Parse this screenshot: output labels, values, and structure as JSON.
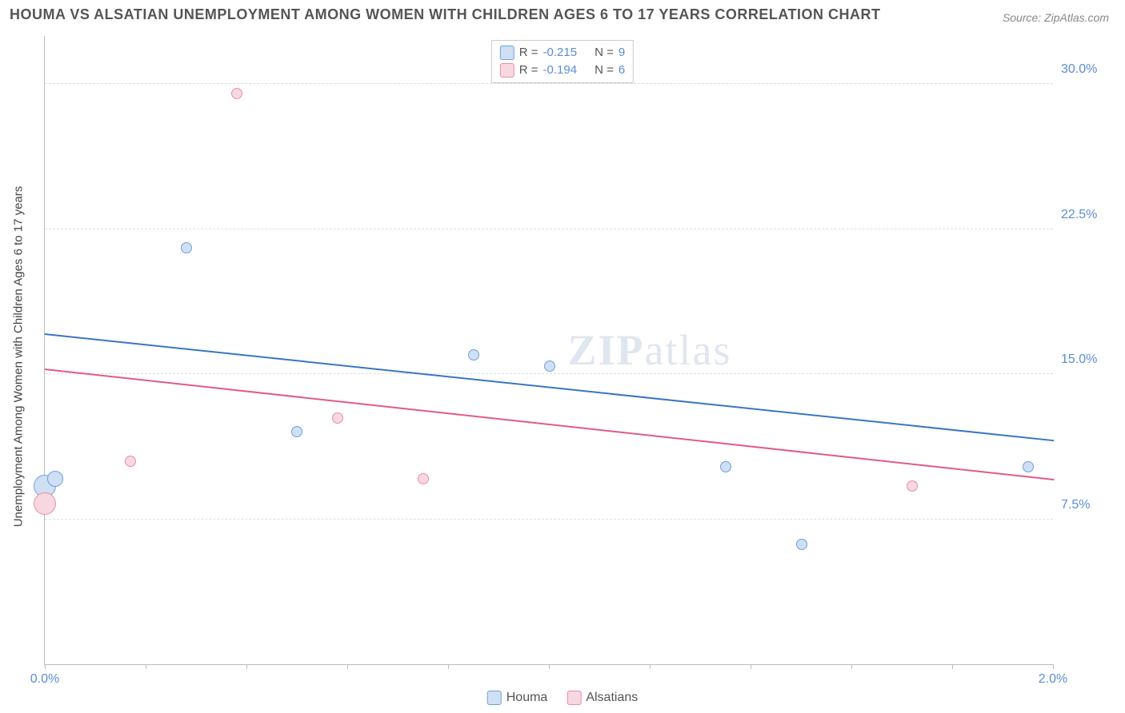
{
  "title": "HOUMA VS ALSATIAN UNEMPLOYMENT AMONG WOMEN WITH CHILDREN AGES 6 TO 17 YEARS CORRELATION CHART",
  "source": "Source: ZipAtlas.com",
  "y_axis_label": "Unemployment Among Women with Children Ages 6 to 17 years",
  "watermark_bold": "ZIP",
  "watermark_light": "atlas",
  "chart": {
    "type": "scatter",
    "xlim": [
      0.0,
      2.0
    ],
    "ylim": [
      0.0,
      32.5
    ],
    "x_ticks": [
      0.0,
      0.2,
      0.4,
      0.6,
      0.8,
      1.0,
      1.2,
      1.4,
      1.6,
      1.8,
      2.0
    ],
    "x_tick_labels": {
      "0": "0.0%",
      "2": "2.0%"
    },
    "y_gridlines": [
      7.5,
      15.0,
      22.5,
      30.0
    ],
    "y_tick_labels": [
      "7.5%",
      "15.0%",
      "22.5%",
      "30.0%"
    ],
    "background_color": "#ffffff",
    "grid_color": "#dddddd",
    "axis_color": "#bbbbbb",
    "series": [
      {
        "name": "Houma",
        "color_fill": "#cfe0f5",
        "color_stroke": "#6f9fd8",
        "R": "-0.215",
        "N": "9",
        "points": [
          {
            "x": 0.0,
            "y": 9.2,
            "r": 14
          },
          {
            "x": 0.02,
            "y": 9.6,
            "r": 10
          },
          {
            "x": 0.28,
            "y": 21.5,
            "r": 7
          },
          {
            "x": 0.5,
            "y": 12.0,
            "r": 7
          },
          {
            "x": 0.85,
            "y": 16.0,
            "r": 7
          },
          {
            "x": 1.0,
            "y": 15.4,
            "r": 7
          },
          {
            "x": 1.35,
            "y": 10.2,
            "r": 7
          },
          {
            "x": 1.5,
            "y": 6.2,
            "r": 7
          },
          {
            "x": 1.95,
            "y": 10.2,
            "r": 7
          }
        ],
        "trend": {
          "y_at_x0": 17.0,
          "y_at_xmax": 11.5,
          "color": "#3b74c4"
        }
      },
      {
        "name": "Alsatians",
        "color_fill": "#f7d7e0",
        "color_stroke": "#e68fa8",
        "R": "-0.194",
        "N": "6",
        "points": [
          {
            "x": 0.0,
            "y": 8.3,
            "r": 14
          },
          {
            "x": 0.17,
            "y": 10.5,
            "r": 7
          },
          {
            "x": 0.38,
            "y": 29.5,
            "r": 7
          },
          {
            "x": 0.58,
            "y": 12.7,
            "r": 7
          },
          {
            "x": 0.75,
            "y": 9.6,
            "r": 7
          },
          {
            "x": 1.72,
            "y": 9.2,
            "r": 7
          }
        ],
        "trend": {
          "y_at_x0": 15.2,
          "y_at_xmax": 9.5,
          "color": "#e05a8a"
        }
      }
    ]
  },
  "legend_top": [
    {
      "swatch_fill": "#cfe0f5",
      "swatch_stroke": "#6f9fd8",
      "R_label": "R =",
      "R": "-0.215",
      "N_label": "N =",
      "N": "9"
    },
    {
      "swatch_fill": "#f7d7e0",
      "swatch_stroke": "#e68fa8",
      "R_label": "R =",
      "R": "-0.194",
      "N_label": "N =",
      "N": "6"
    }
  ],
  "legend_bottom": [
    {
      "swatch_fill": "#cfe0f5",
      "swatch_stroke": "#6f9fd8",
      "label": "Houma"
    },
    {
      "swatch_fill": "#f7d7e0",
      "swatch_stroke": "#e68fa8",
      "label": "Alsatians"
    }
  ]
}
